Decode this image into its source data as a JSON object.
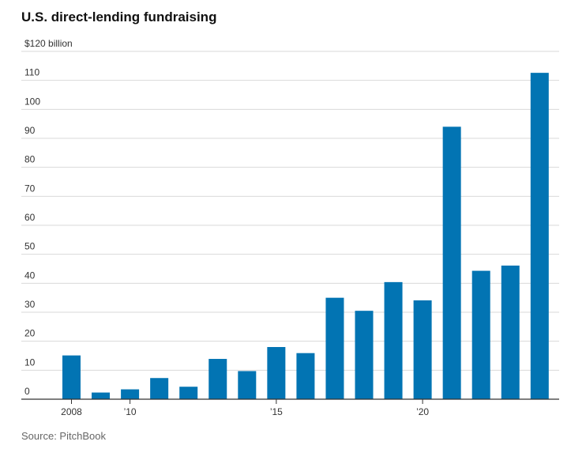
{
  "title": "U.S. direct-lending fundraising",
  "source": "Source: PitchBook",
  "chart_data": {
    "type": "bar",
    "title": "U.S. direct-lending fundraising",
    "categories": [
      "2008",
      "2009",
      "2010",
      "2011",
      "2012",
      "2013",
      "2014",
      "2015",
      "2016",
      "2017",
      "2018",
      "2019",
      "2020",
      "2021",
      "2022",
      "2023",
      "2024"
    ],
    "values": [
      15.1,
      2.3,
      3.4,
      7.3,
      4.3,
      13.9,
      9.7,
      18.0,
      15.9,
      35.0,
      30.5,
      40.4,
      34.1,
      94.0,
      44.3,
      46.1,
      112.6
    ],
    "ylim": [
      0,
      120
    ],
    "yticks": [
      0,
      10,
      20,
      30,
      40,
      50,
      60,
      70,
      80,
      90,
      100,
      110,
      120
    ],
    "ytick_labels": [
      "0",
      "10",
      "20",
      "30",
      "40",
      "50",
      "60",
      "70",
      "80",
      "90",
      "100",
      "110",
      "$120 billion"
    ],
    "xtick_labels": [
      {
        "category": "2008",
        "label": "2008"
      },
      {
        "category": "2010",
        "label": "’10"
      },
      {
        "category": "2015",
        "label": "’15"
      },
      {
        "category": "2020",
        "label": "’20"
      }
    ],
    "bar_color": "#0274b3",
    "grid": true,
    "legend": "none"
  }
}
